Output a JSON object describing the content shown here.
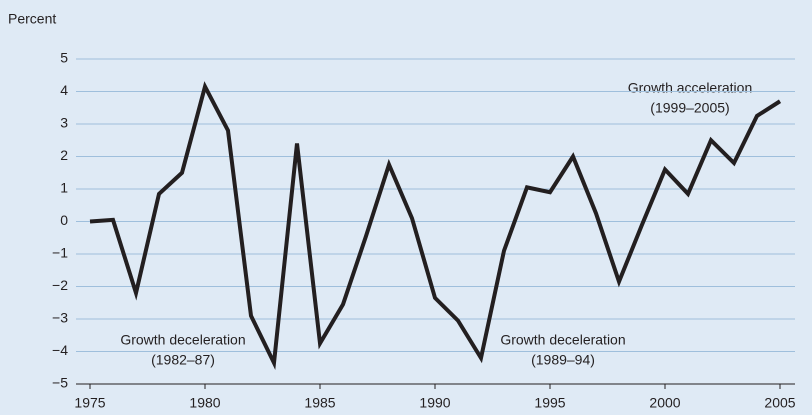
{
  "chart_data": {
    "type": "line",
    "y_label": "Percent",
    "x": [
      1975,
      1976,
      1977,
      1978,
      1979,
      1980,
      1981,
      1982,
      1983,
      1984,
      1985,
      1986,
      1987,
      1988,
      1989,
      1990,
      1991,
      1992,
      1993,
      1994,
      1995,
      1996,
      1997,
      1998,
      1999,
      2000,
      2001,
      2002,
      2003,
      2004,
      2005
    ],
    "series": [
      {
        "color": "#231f20",
        "values": [
          0.0,
          0.05,
          -2.2,
          0.85,
          1.5,
          4.15,
          2.8,
          -2.9,
          -4.35,
          2.4,
          -3.75,
          -2.55,
          -0.45,
          1.75,
          0.1,
          -2.35,
          -3.05,
          -4.2,
          -0.9,
          1.05,
          0.9,
          2.0,
          0.25,
          -1.85,
          -0.1,
          1.6,
          0.85,
          2.5,
          1.8,
          3.25,
          3.7
        ]
      }
    ],
    "xlim": [
      1975,
      2005
    ],
    "xticks": [
      1975,
      1980,
      1985,
      1990,
      1995,
      2000,
      2005
    ],
    "ylim": [
      -5,
      5
    ],
    "yticks": [
      {
        "value": -5,
        "label": "−5"
      },
      {
        "value": -4,
        "label": "−4"
      },
      {
        "value": -3,
        "label": "−3"
      },
      {
        "value": -2,
        "label": "−2"
      },
      {
        "value": -1,
        "label": "−1"
      },
      0,
      1,
      2,
      3,
      4,
      5
    ],
    "grid": true,
    "annotations": [
      [
        "Growth deceleration",
        "(1982–87)"
      ],
      [
        "Growth deceleration",
        "(1989–94)"
      ],
      [
        "Growth acceleration",
        "(1999–2005)"
      ]
    ]
  }
}
